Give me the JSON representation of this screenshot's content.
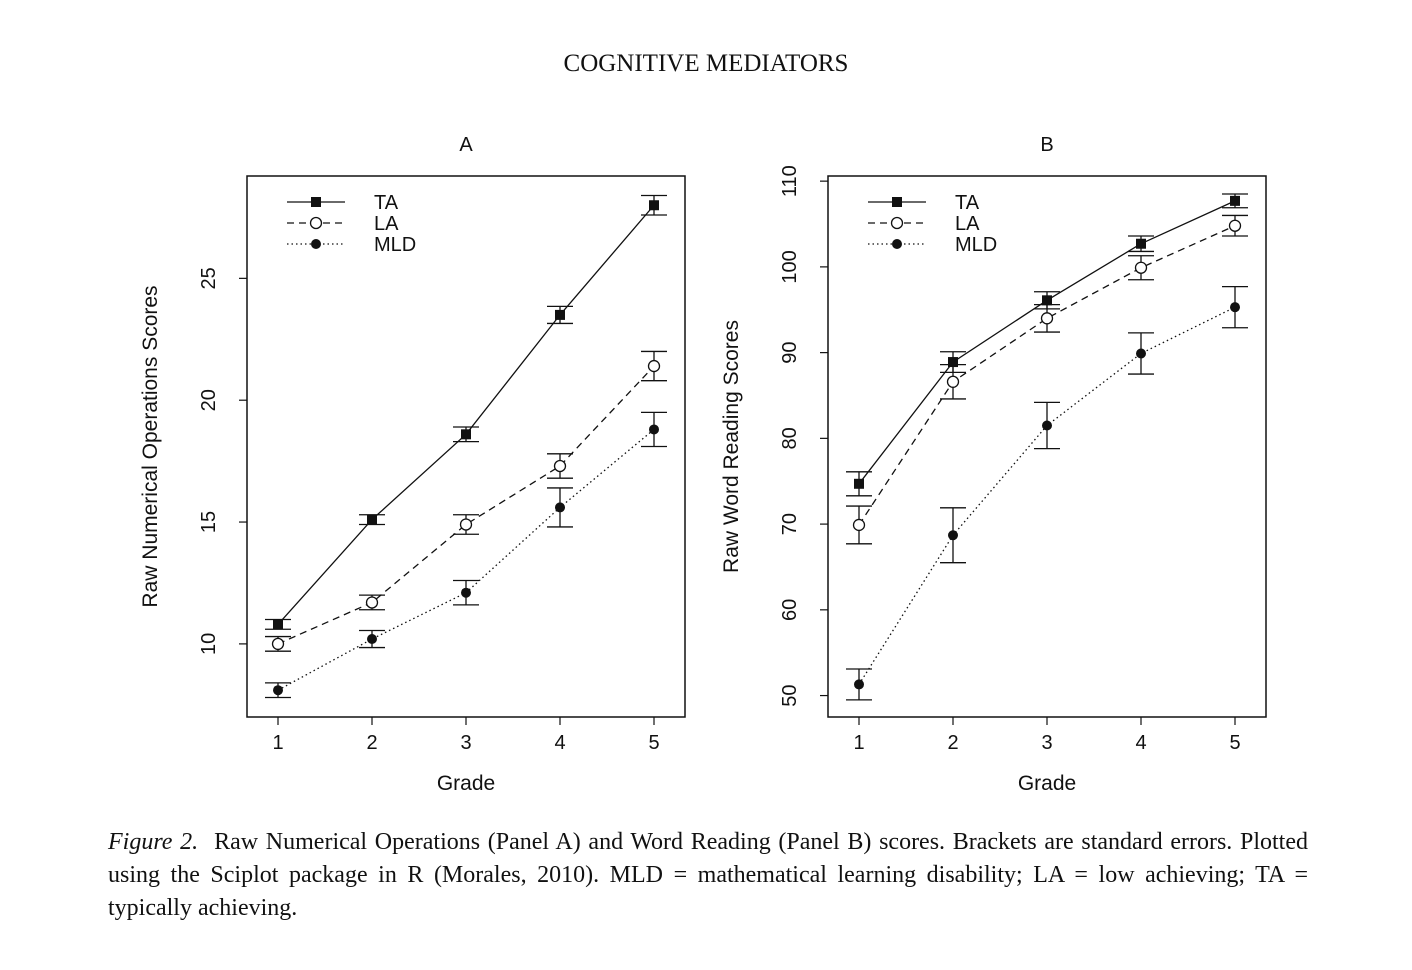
{
  "header": {
    "running_head": "COGNITIVE MEDIATORS"
  },
  "chart_data": [
    {
      "type": "line",
      "panel_title": "A",
      "xlabel": "Grade",
      "ylabel": "Raw Numerical Operations Scores",
      "x": [
        1,
        2,
        3,
        4,
        5
      ],
      "xticks": [
        "1",
        "2",
        "3",
        "4",
        "5"
      ],
      "yticks": [
        10,
        15,
        20,
        25
      ],
      "ylim": [
        7.0,
        29.2
      ],
      "grid": false,
      "legend_position": "top-left",
      "series": [
        {
          "name": "TA",
          "marker": "filled-square",
          "line": "solid",
          "values": [
            10.8,
            15.1,
            18.6,
            23.5,
            28.0
          ],
          "errors": [
            0.2,
            0.2,
            0.3,
            0.35,
            0.4
          ]
        },
        {
          "name": "LA",
          "marker": "open-circle",
          "line": "dashed",
          "values": [
            10.0,
            11.7,
            14.9,
            17.3,
            21.4
          ],
          "errors": [
            0.3,
            0.3,
            0.4,
            0.5,
            0.6
          ]
        },
        {
          "name": "MLD",
          "marker": "filled-circle",
          "line": "dotted",
          "values": [
            8.1,
            10.2,
            12.1,
            15.6,
            18.8
          ],
          "errors": [
            0.3,
            0.35,
            0.5,
            0.8,
            0.7
          ]
        }
      ]
    },
    {
      "type": "line",
      "panel_title": "B",
      "xlabel": "Grade",
      "ylabel": "Raw Word Reading Scores",
      "x": [
        1,
        2,
        3,
        4,
        5
      ],
      "xticks": [
        "1",
        "2",
        "3",
        "4",
        "5"
      ],
      "yticks": [
        50,
        60,
        70,
        80,
        90,
        100,
        110
      ],
      "ylim": [
        47.5,
        110.6
      ],
      "grid": false,
      "legend_position": "top-left",
      "series": [
        {
          "name": "TA",
          "marker": "filled-square",
          "line": "solid",
          "values": [
            74.7,
            88.9,
            96.1,
            102.7,
            107.7
          ],
          "errors": [
            1.4,
            1.2,
            1.0,
            0.9,
            0.8
          ]
        },
        {
          "name": "LA",
          "marker": "open-circle",
          "line": "dashed",
          "values": [
            69.9,
            86.6,
            94.0,
            99.9,
            104.8
          ],
          "errors": [
            2.2,
            2.0,
            1.6,
            1.4,
            1.2
          ]
        },
        {
          "name": "MLD",
          "marker": "filled-circle",
          "line": "dotted",
          "values": [
            51.3,
            68.7,
            81.5,
            89.9,
            95.3
          ],
          "errors": [
            1.8,
            3.2,
            2.7,
            2.4,
            2.4
          ]
        }
      ]
    }
  ],
  "caption": {
    "label": "Figure 2.",
    "text": "Raw Numerical Operations (Panel A) and Word Reading (Panel B) scores. Brackets are standard errors. Plotted using the Sciplot package in R (Morales, 2010). MLD = mathematical learning disability; LA = low achieving; TA = typically achieving."
  }
}
